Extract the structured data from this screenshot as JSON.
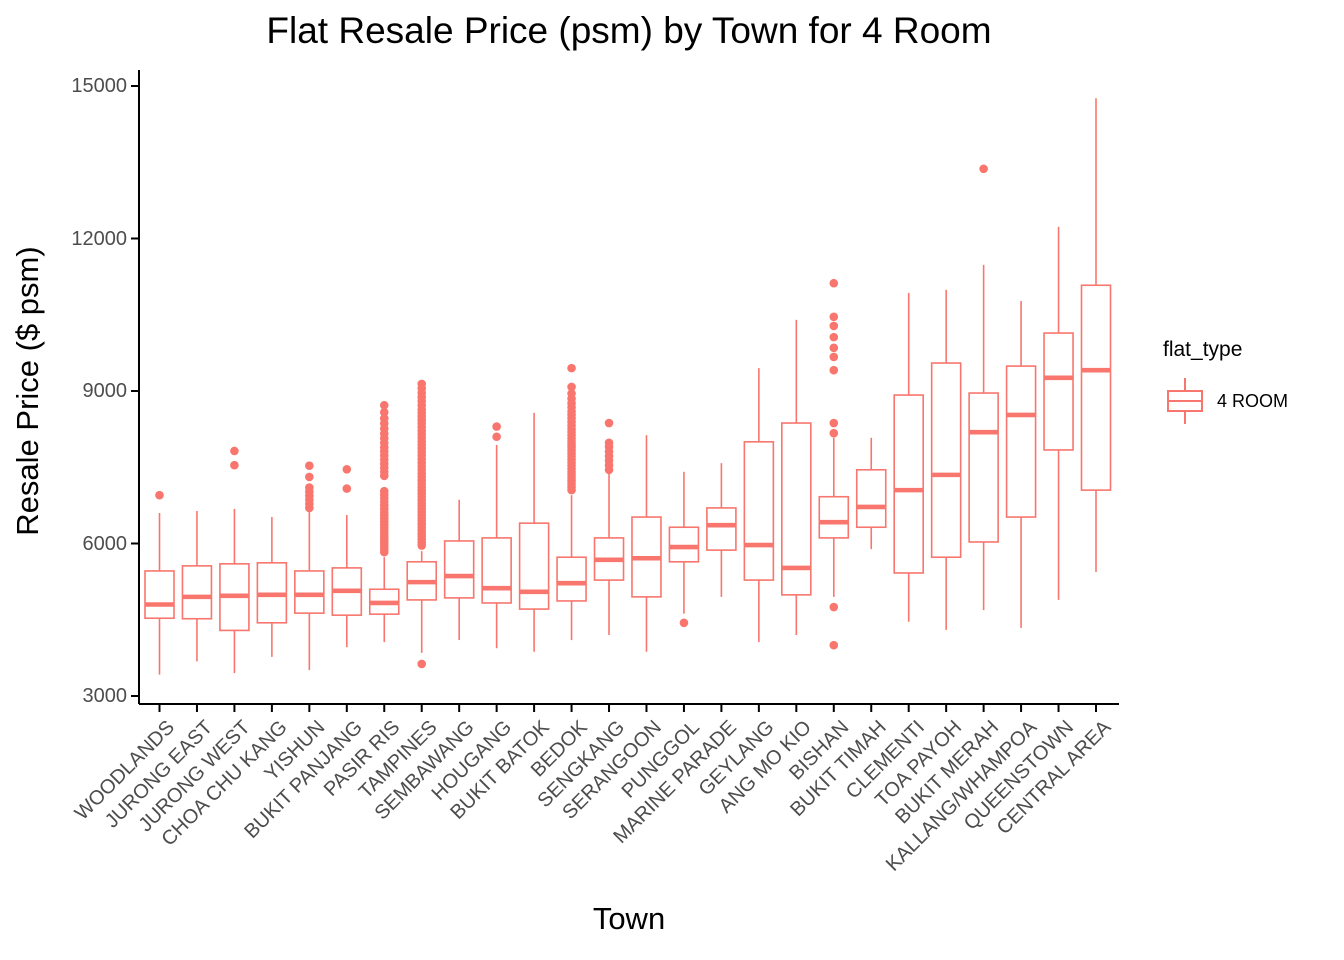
{
  "title": "Flat Resale Price (psm) by Town for 4 Room",
  "axes": {
    "x_label": "Town",
    "y_label": "Resale Price ($ psm)",
    "y_ticks": [
      3000,
      6000,
      9000,
      12000,
      15000
    ],
    "y_tick_labels": [
      "3000",
      "6000",
      "9000",
      "12000",
      "15000"
    ]
  },
  "legend": {
    "title": "flat_type",
    "items": [
      {
        "label": "4 ROOM",
        "color": "#F8766D",
        "icon": "boxplot-key-icon"
      }
    ]
  },
  "colors": {
    "box": "#F8766D",
    "axis": "#000000",
    "tick_label": "#4D4D4D",
    "background": "#FFFFFF"
  },
  "chart_data": {
    "type": "boxplot",
    "title": "Flat Resale Price (psm) by Town for 4 Room",
    "xlabel": "Town",
    "ylabel": "Resale Price ($ psm)",
    "ylim": [
      3000,
      15000
    ],
    "grid": false,
    "legend_position": "right",
    "series_name": "4 ROOM",
    "categories": [
      "WOODLANDS",
      "JURONG EAST",
      "JURONG WEST",
      "CHOA CHU KANG",
      "YISHUN",
      "BUKIT PANJANG",
      "PASIR RIS",
      "TAMPINES",
      "SEMBAWANG",
      "HOUGANG",
      "BUKIT BATOK",
      "BEDOK",
      "SENGKANG",
      "SERANGOON",
      "PUNGGOL",
      "MARINE PARADE",
      "GEYLANG",
      "ANG MO KIO",
      "BISHAN",
      "BUKIT TIMAH",
      "CLEMENTI",
      "TOA PAYOH",
      "BUKIT MERAH",
      "KALLANG/WHAMPOA",
      "QUEENSTOWN",
      "CENTRAL AREA"
    ],
    "boxes": [
      {
        "town": "WOODLANDS",
        "low": 3420,
        "q1": 4530,
        "median": 4800,
        "q3": 5460,
        "high": 6600,
        "outliers": [
          6950
        ]
      },
      {
        "town": "JURONG EAST",
        "low": 3680,
        "q1": 4520,
        "median": 4950,
        "q3": 5560,
        "high": 6640,
        "outliers": []
      },
      {
        "town": "JURONG WEST",
        "low": 3450,
        "q1": 4290,
        "median": 4970,
        "q3": 5600,
        "high": 6680,
        "outliers": [
          7540,
          7820
        ]
      },
      {
        "town": "CHOA CHU KANG",
        "low": 3770,
        "q1": 4440,
        "median": 4990,
        "q3": 5620,
        "high": 6520,
        "outliers": []
      },
      {
        "town": "YISHUN",
        "low": 3510,
        "q1": 4630,
        "median": 4990,
        "q3": 5460,
        "high": 6620,
        "outliers": [
          6700,
          6780,
          6860,
          6940,
          7020,
          7100,
          7310,
          7530
        ]
      },
      {
        "town": "BUKIT PANJANG",
        "low": 3960,
        "q1": 4590,
        "median": 5070,
        "q3": 5520,
        "high": 6560,
        "outliers": [
          7080,
          7460
        ]
      },
      {
        "town": "PASIR RIS",
        "low": 4060,
        "q1": 4610,
        "median": 4830,
        "q3": 5100,
        "high": 5730,
        "outliers": [
          5830,
          5890,
          5950,
          6010,
          6070,
          6130,
          6190,
          6250,
          6310,
          6370,
          6430,
          6490,
          6550,
          6610,
          6680,
          6750,
          6820,
          6890,
          6960,
          7030,
          7330,
          7410,
          7490,
          7570,
          7650,
          7730,
          7810,
          7890,
          7980,
          8070,
          8160,
          8260,
          8360,
          8460,
          8580,
          8720
        ]
      },
      {
        "town": "TAMPINES",
        "low": 3850,
        "q1": 4890,
        "median": 5240,
        "q3": 5640,
        "high": 5850,
        "outliers": [
          3630,
          5960,
          6020,
          6080,
          6140,
          6200,
          6260,
          6320,
          6380,
          6440,
          6500,
          6560,
          6620,
          6680,
          6740,
          6800,
          6860,
          6920,
          6980,
          7040,
          7100,
          7170,
          7240,
          7310,
          7380,
          7450,
          7520,
          7590,
          7660,
          7730,
          7800,
          7870,
          7940,
          8010,
          8080,
          8150,
          8220,
          8290,
          8360,
          8430,
          8500,
          8570,
          8640,
          8720,
          8800,
          8880,
          8960,
          9050,
          9140
        ]
      },
      {
        "town": "SEMBAWANG",
        "low": 4100,
        "q1": 4930,
        "median": 5360,
        "q3": 6050,
        "high": 6860,
        "outliers": []
      },
      {
        "town": "HOUGANG",
        "low": 3940,
        "q1": 4830,
        "median": 5120,
        "q3": 6110,
        "high": 7940,
        "outliers": [
          8100,
          8300
        ]
      },
      {
        "town": "BUKIT BATOK",
        "low": 3870,
        "q1": 4710,
        "median": 5050,
        "q3": 6400,
        "high": 8570,
        "outliers": []
      },
      {
        "town": "BEDOK",
        "low": 4100,
        "q1": 4870,
        "median": 5220,
        "q3": 5730,
        "high": 6950,
        "outliers": [
          7050,
          7110,
          7170,
          7230,
          7290,
          7350,
          7410,
          7470,
          7530,
          7590,
          7650,
          7710,
          7770,
          7830,
          7890,
          7950,
          8010,
          8070,
          8130,
          8190,
          8250,
          8320,
          8390,
          8460,
          8530,
          8600,
          8680,
          8760,
          8850,
          8950,
          9080,
          9450
        ]
      },
      {
        "town": "SENGKANG",
        "low": 4200,
        "q1": 5280,
        "median": 5680,
        "q3": 6110,
        "high": 7390,
        "outliers": [
          7450,
          7540,
          7630,
          7720,
          7810,
          7900,
          7980,
          8370
        ]
      },
      {
        "town": "SERANGOON",
        "low": 3870,
        "q1": 4950,
        "median": 5710,
        "q3": 6520,
        "high": 8130,
        "outliers": []
      },
      {
        "town": "PUNGGOL",
        "low": 4620,
        "q1": 5640,
        "median": 5930,
        "q3": 6320,
        "high": 7410,
        "outliers": [
          4440
        ]
      },
      {
        "town": "MARINE PARADE",
        "low": 4950,
        "q1": 5870,
        "median": 6360,
        "q3": 6700,
        "high": 7580,
        "outliers": []
      },
      {
        "town": "GEYLANG",
        "low": 4060,
        "q1": 5280,
        "median": 5970,
        "q3": 8000,
        "high": 9450,
        "outliers": []
      },
      {
        "town": "ANG MO KIO",
        "low": 4200,
        "q1": 4990,
        "median": 5520,
        "q3": 8370,
        "high": 10400,
        "outliers": []
      },
      {
        "town": "BISHAN",
        "low": 4950,
        "q1": 6110,
        "median": 6420,
        "q3": 6920,
        "high": 8080,
        "outliers": [
          4000,
          4750,
          8170,
          8370,
          9410,
          9670,
          9850,
          10060,
          10280,
          10460,
          11120
        ]
      },
      {
        "town": "BUKIT TIMAH",
        "low": 5890,
        "q1": 6320,
        "median": 6720,
        "q3": 7450,
        "high": 8080,
        "outliers": []
      },
      {
        "town": "CLEMENTI",
        "low": 4460,
        "q1": 5420,
        "median": 7050,
        "q3": 8920,
        "high": 10930,
        "outliers": []
      },
      {
        "town": "TOA PAYOH",
        "low": 4300,
        "q1": 5730,
        "median": 7350,
        "q3": 9550,
        "high": 10990,
        "outliers": []
      },
      {
        "town": "BUKIT MERAH",
        "low": 4690,
        "q1": 6030,
        "median": 8190,
        "q3": 8960,
        "high": 11480,
        "outliers": [
          13370
        ]
      },
      {
        "town": "KALLANG/WHAMPOA",
        "low": 4340,
        "q1": 6520,
        "median": 8530,
        "q3": 9490,
        "high": 10770,
        "outliers": []
      },
      {
        "town": "QUEENSTOWN",
        "low": 4890,
        "q1": 7840,
        "median": 9260,
        "q3": 10140,
        "high": 12230,
        "outliers": []
      },
      {
        "town": "CENTRAL AREA",
        "low": 5440,
        "q1": 7050,
        "median": 9410,
        "q3": 11080,
        "high": 14760,
        "outliers": []
      }
    ]
  }
}
